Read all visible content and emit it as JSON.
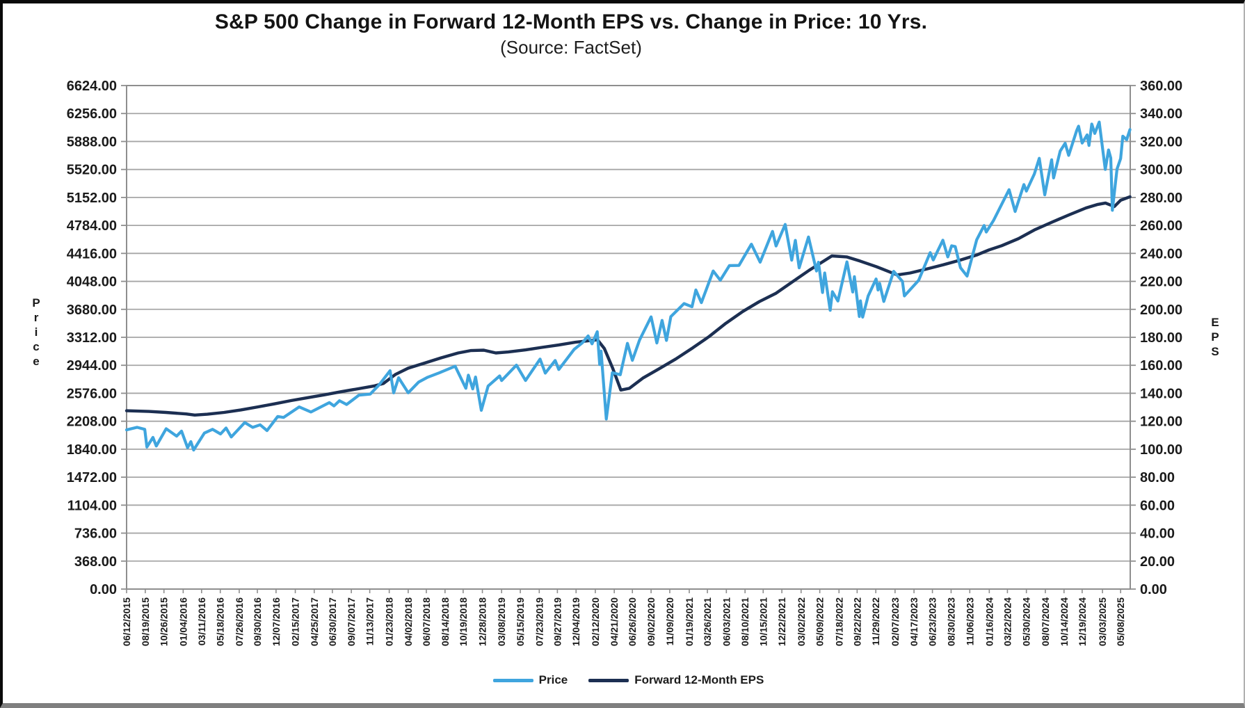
{
  "chart_data": {
    "type": "line",
    "title": "S&P 500 Change in Forward 12-Month EPS vs. Change in Price: 10 Yrs.",
    "subtitle": "(Source: FactSet)",
    "grid": "horizontal-only",
    "legend_position": "bottom-center",
    "x_range": [
      "2015-06-12",
      "2025-06-12"
    ],
    "left_axis": {
      "label": "Price",
      "min": 0,
      "max": 6624,
      "tick_step": 368,
      "ticks": [
        "6624.00",
        "6256.00",
        "5888.00",
        "5520.00",
        "5152.00",
        "4784.00",
        "4416.00",
        "4048.00",
        "3680.00",
        "3312.00",
        "2944.00",
        "2576.00",
        "2208.00",
        "1840.00",
        "1472.00",
        "1104.00",
        "736.00",
        "368.00",
        "0.00"
      ]
    },
    "right_axis": {
      "label": "EPS",
      "min": 0,
      "max": 360,
      "tick_step": 20,
      "ticks": [
        "360.00",
        "340.00",
        "320.00",
        "300.00",
        "280.00",
        "260.00",
        "240.00",
        "220.00",
        "200.00",
        "180.00",
        "160.00",
        "140.00",
        "120.00",
        "100.00",
        "80.00",
        "60.00",
        "40.00",
        "20.00",
        "0.00"
      ]
    },
    "x_ticks": [
      "06/12/2015",
      "08/19/2015",
      "10/26/2015",
      "01/04/2016",
      "03/11/2016",
      "05/18/2016",
      "07/26/2016",
      "09/30/2016",
      "12/07/2016",
      "02/15/2017",
      "04/25/2017",
      "06/30/2017",
      "09/07/2017",
      "11/13/2017",
      "01/23/2018",
      "04/02/2018",
      "06/07/2018",
      "08/14/2018",
      "10/19/2018",
      "12/28/2018",
      "03/08/2019",
      "05/15/2019",
      "07/23/2019",
      "09/27/2019",
      "12/04/2019",
      "02/12/2020",
      "04/21/2020",
      "06/26/2020",
      "09/02/2020",
      "11/09/2020",
      "01/19/2021",
      "03/26/2021",
      "06/03/2021",
      "08/10/2021",
      "10/15/2021",
      "12/22/2021",
      "03/02/2022",
      "05/09/2022",
      "07/18/2022",
      "09/22/2022",
      "11/29/2022",
      "02/07/2023",
      "04/17/2023",
      "06/23/2023",
      "08/30/2023",
      "11/06/2023",
      "01/16/2024",
      "03/22/2024",
      "05/30/2024",
      "08/07/2024",
      "10/14/2024",
      "12/19/2024",
      "03/03/2025",
      "05/08/2025"
    ],
    "colors": {
      "price": "#3FA5DE",
      "eps": "#1C2F52",
      "grid": "#A6A6A6",
      "plot_border": "#8E8E8E",
      "text": "#1A1A1A"
    },
    "series": [
      {
        "name": "Price",
        "axis": "left",
        "color": "#3FA5DE",
        "points": [
          [
            "2015-06-12",
            2094
          ],
          [
            "2015-07-20",
            2128
          ],
          [
            "2015-08-17",
            2102
          ],
          [
            "2015-08-25",
            1868
          ],
          [
            "2015-09-16",
            1995
          ],
          [
            "2015-09-28",
            1882
          ],
          [
            "2015-11-03",
            2110
          ],
          [
            "2015-12-11",
            2012
          ],
          [
            "2015-12-29",
            2078
          ],
          [
            "2016-01-20",
            1859
          ],
          [
            "2016-02-01",
            1940
          ],
          [
            "2016-02-11",
            1829
          ],
          [
            "2016-03-21",
            2052
          ],
          [
            "2016-04-20",
            2102
          ],
          [
            "2016-05-19",
            2040
          ],
          [
            "2016-06-08",
            2119
          ],
          [
            "2016-06-27",
            2001
          ],
          [
            "2016-08-15",
            2190
          ],
          [
            "2016-09-13",
            2127
          ],
          [
            "2016-10-10",
            2161
          ],
          [
            "2016-11-04",
            2085
          ],
          [
            "2016-12-13",
            2271
          ],
          [
            "2017-01-03",
            2258
          ],
          [
            "2017-03-01",
            2396
          ],
          [
            "2017-04-13",
            2329
          ],
          [
            "2017-06-19",
            2453
          ],
          [
            "2017-07-06",
            2410
          ],
          [
            "2017-07-26",
            2478
          ],
          [
            "2017-08-21",
            2428
          ],
          [
            "2017-10-05",
            2552
          ],
          [
            "2017-11-15",
            2565
          ],
          [
            "2017-12-18",
            2690
          ],
          [
            "2018-01-26",
            2873
          ],
          [
            "2018-02-08",
            2581
          ],
          [
            "2018-02-26",
            2780
          ],
          [
            "2018-04-02",
            2582
          ],
          [
            "2018-05-10",
            2723
          ],
          [
            "2018-06-12",
            2787
          ],
          [
            "2018-07-25",
            2846
          ],
          [
            "2018-09-20",
            2931
          ],
          [
            "2018-10-29",
            2641
          ],
          [
            "2018-11-07",
            2814
          ],
          [
            "2018-11-23",
            2633
          ],
          [
            "2018-12-03",
            2790
          ],
          [
            "2018-12-24",
            2351
          ],
          [
            "2019-01-18",
            2671
          ],
          [
            "2019-03-01",
            2804
          ],
          [
            "2019-03-08",
            2743
          ],
          [
            "2019-05-01",
            2946
          ],
          [
            "2019-06-03",
            2744
          ],
          [
            "2019-07-26",
            3026
          ],
          [
            "2019-08-14",
            2841
          ],
          [
            "2019-09-19",
            3007
          ],
          [
            "2019-10-02",
            2888
          ],
          [
            "2019-11-27",
            3154
          ],
          [
            "2019-12-27",
            3240
          ],
          [
            "2020-01-17",
            3330
          ],
          [
            "2020-01-31",
            3226
          ],
          [
            "2020-02-19",
            3386
          ],
          [
            "2020-02-28",
            2954
          ],
          [
            "2020-03-04",
            3130
          ],
          [
            "2020-03-23",
            2237
          ],
          [
            "2020-04-14",
            2846
          ],
          [
            "2020-05-13",
            2820
          ],
          [
            "2020-06-08",
            3232
          ],
          [
            "2020-06-26",
            3009
          ],
          [
            "2020-07-22",
            3276
          ],
          [
            "2020-09-02",
            3581
          ],
          [
            "2020-09-23",
            3237
          ],
          [
            "2020-10-12",
            3534
          ],
          [
            "2020-10-28",
            3271
          ],
          [
            "2020-11-13",
            3585
          ],
          [
            "2020-12-31",
            3756
          ],
          [
            "2021-01-29",
            3714
          ],
          [
            "2021-02-12",
            3935
          ],
          [
            "2021-03-04",
            3768
          ],
          [
            "2021-04-16",
            4185
          ],
          [
            "2021-05-12",
            4063
          ],
          [
            "2021-06-14",
            4255
          ],
          [
            "2021-07-19",
            4258
          ],
          [
            "2021-09-02",
            4537
          ],
          [
            "2021-10-04",
            4300
          ],
          [
            "2021-11-18",
            4705
          ],
          [
            "2021-12-01",
            4513
          ],
          [
            "2022-01-03",
            4797
          ],
          [
            "2022-01-27",
            4327
          ],
          [
            "2022-02-09",
            4587
          ],
          [
            "2022-02-23",
            4226
          ],
          [
            "2022-03-29",
            4632
          ],
          [
            "2022-04-27",
            4184
          ],
          [
            "2022-05-04",
            4300
          ],
          [
            "2022-05-19",
            3901
          ],
          [
            "2022-05-27",
            4158
          ],
          [
            "2022-06-16",
            3667
          ],
          [
            "2022-06-24",
            3912
          ],
          [
            "2022-07-14",
            3790
          ],
          [
            "2022-08-16",
            4305
          ],
          [
            "2022-09-06",
            3908
          ],
          [
            "2022-09-12",
            4110
          ],
          [
            "2022-09-30",
            3586
          ],
          [
            "2022-10-04",
            3791
          ],
          [
            "2022-10-12",
            3577
          ],
          [
            "2022-11-01",
            3856
          ],
          [
            "2022-11-30",
            4080
          ],
          [
            "2022-12-07",
            3934
          ],
          [
            "2022-12-13",
            4020
          ],
          [
            "2022-12-28",
            3783
          ],
          [
            "2023-02-02",
            4180
          ],
          [
            "2023-03-06",
            4048
          ],
          [
            "2023-03-13",
            3856
          ],
          [
            "2023-05-04",
            4061
          ],
          [
            "2023-06-15",
            4426
          ],
          [
            "2023-06-26",
            4329
          ],
          [
            "2023-07-31",
            4589
          ],
          [
            "2023-08-18",
            4370
          ],
          [
            "2023-09-01",
            4516
          ],
          [
            "2023-09-14",
            4505
          ],
          [
            "2023-10-03",
            4229
          ],
          [
            "2023-10-27",
            4117
          ],
          [
            "2023-12-01",
            4594
          ],
          [
            "2023-12-28",
            4783
          ],
          [
            "2024-01-05",
            4697
          ],
          [
            "2024-01-31",
            4846
          ],
          [
            "2024-03-28",
            5254
          ],
          [
            "2024-04-19",
            4967
          ],
          [
            "2024-05-21",
            5321
          ],
          [
            "2024-05-30",
            5235
          ],
          [
            "2024-06-28",
            5460
          ],
          [
            "2024-07-16",
            5667
          ],
          [
            "2024-08-05",
            5186
          ],
          [
            "2024-08-30",
            5648
          ],
          [
            "2024-09-06",
            5408
          ],
          [
            "2024-09-30",
            5762
          ],
          [
            "2024-10-18",
            5865
          ],
          [
            "2024-10-31",
            5705
          ],
          [
            "2024-11-29",
            6032
          ],
          [
            "2024-12-06",
            6090
          ],
          [
            "2024-12-19",
            5867
          ],
          [
            "2025-01-06",
            5975
          ],
          [
            "2025-01-13",
            5836
          ],
          [
            "2025-01-23",
            6118
          ],
          [
            "2025-02-03",
            5994
          ],
          [
            "2025-02-19",
            6144
          ],
          [
            "2025-03-13",
            5521
          ],
          [
            "2025-03-25",
            5777
          ],
          [
            "2025-04-02",
            5671
          ],
          [
            "2025-04-08",
            4983
          ],
          [
            "2025-04-25",
            5525
          ],
          [
            "2025-05-08",
            5664
          ],
          [
            "2025-05-16",
            5958
          ],
          [
            "2025-05-30",
            5912
          ],
          [
            "2025-06-11",
            6045
          ]
        ]
      },
      {
        "name": "Forward 12-Month EPS",
        "axis": "right",
        "color": "#1C2F52",
        "points": [
          [
            "2015-06-12",
            127.5
          ],
          [
            "2015-09-01",
            127.0
          ],
          [
            "2015-11-02",
            126.3
          ],
          [
            "2016-01-15",
            125.2
          ],
          [
            "2016-02-15",
            124.4
          ],
          [
            "2016-04-01",
            125.0
          ],
          [
            "2016-06-01",
            126.3
          ],
          [
            "2016-08-01",
            128.1
          ],
          [
            "2016-10-03",
            130.3
          ],
          [
            "2016-12-01",
            132.4
          ],
          [
            "2017-02-01",
            134.8
          ],
          [
            "2017-04-03",
            136.9
          ],
          [
            "2017-06-01",
            138.9
          ],
          [
            "2017-08-01",
            141.1
          ],
          [
            "2017-10-02",
            143.2
          ],
          [
            "2017-12-01",
            145.3
          ],
          [
            "2018-01-02",
            147.0
          ],
          [
            "2018-02-15",
            153.5
          ],
          [
            "2018-04-02",
            157.9
          ],
          [
            "2018-06-01",
            161.6
          ],
          [
            "2018-08-01",
            165.4
          ],
          [
            "2018-10-01",
            168.8
          ],
          [
            "2018-11-15",
            170.5
          ],
          [
            "2019-01-02",
            170.8
          ],
          [
            "2019-02-15",
            168.8
          ],
          [
            "2019-04-01",
            169.5
          ],
          [
            "2019-06-03",
            171.0
          ],
          [
            "2019-08-01",
            172.8
          ],
          [
            "2019-10-01",
            174.5
          ],
          [
            "2019-12-02",
            176.5
          ],
          [
            "2020-02-20",
            178.2
          ],
          [
            "2020-03-16",
            172.0
          ],
          [
            "2020-04-15",
            158.0
          ],
          [
            "2020-05-15",
            142.3
          ],
          [
            "2020-06-15",
            143.5
          ],
          [
            "2020-08-03",
            150.8
          ],
          [
            "2020-10-01",
            157.5
          ],
          [
            "2020-12-01",
            164.5
          ],
          [
            "2021-02-01",
            172.5
          ],
          [
            "2021-04-01",
            180.5
          ],
          [
            "2021-06-01",
            190.0
          ],
          [
            "2021-08-02",
            198.5
          ],
          [
            "2021-10-01",
            205.5
          ],
          [
            "2021-12-01",
            211.5
          ],
          [
            "2022-02-01",
            220.0
          ],
          [
            "2022-04-01",
            228.0
          ],
          [
            "2022-06-22",
            238.2
          ],
          [
            "2022-08-15",
            237.5
          ],
          [
            "2022-10-03",
            234.5
          ],
          [
            "2022-12-01",
            230.5
          ],
          [
            "2023-02-15",
            224.6
          ],
          [
            "2023-04-03",
            226.0
          ],
          [
            "2023-06-01",
            228.8
          ],
          [
            "2023-08-01",
            231.8
          ],
          [
            "2023-10-02",
            235.2
          ],
          [
            "2023-12-01",
            238.8
          ],
          [
            "2024-01-15",
            242.5
          ],
          [
            "2024-03-01",
            245.5
          ],
          [
            "2024-05-01",
            250.5
          ],
          [
            "2024-07-01",
            257.0
          ],
          [
            "2024-09-02",
            262.5
          ],
          [
            "2024-11-01",
            267.5
          ],
          [
            "2025-01-02",
            272.5
          ],
          [
            "2025-02-14",
            275.0
          ],
          [
            "2025-03-14",
            276.0
          ],
          [
            "2025-04-15",
            273.5
          ],
          [
            "2025-05-08",
            278.0
          ],
          [
            "2025-06-11",
            280.5
          ]
        ]
      }
    ]
  }
}
